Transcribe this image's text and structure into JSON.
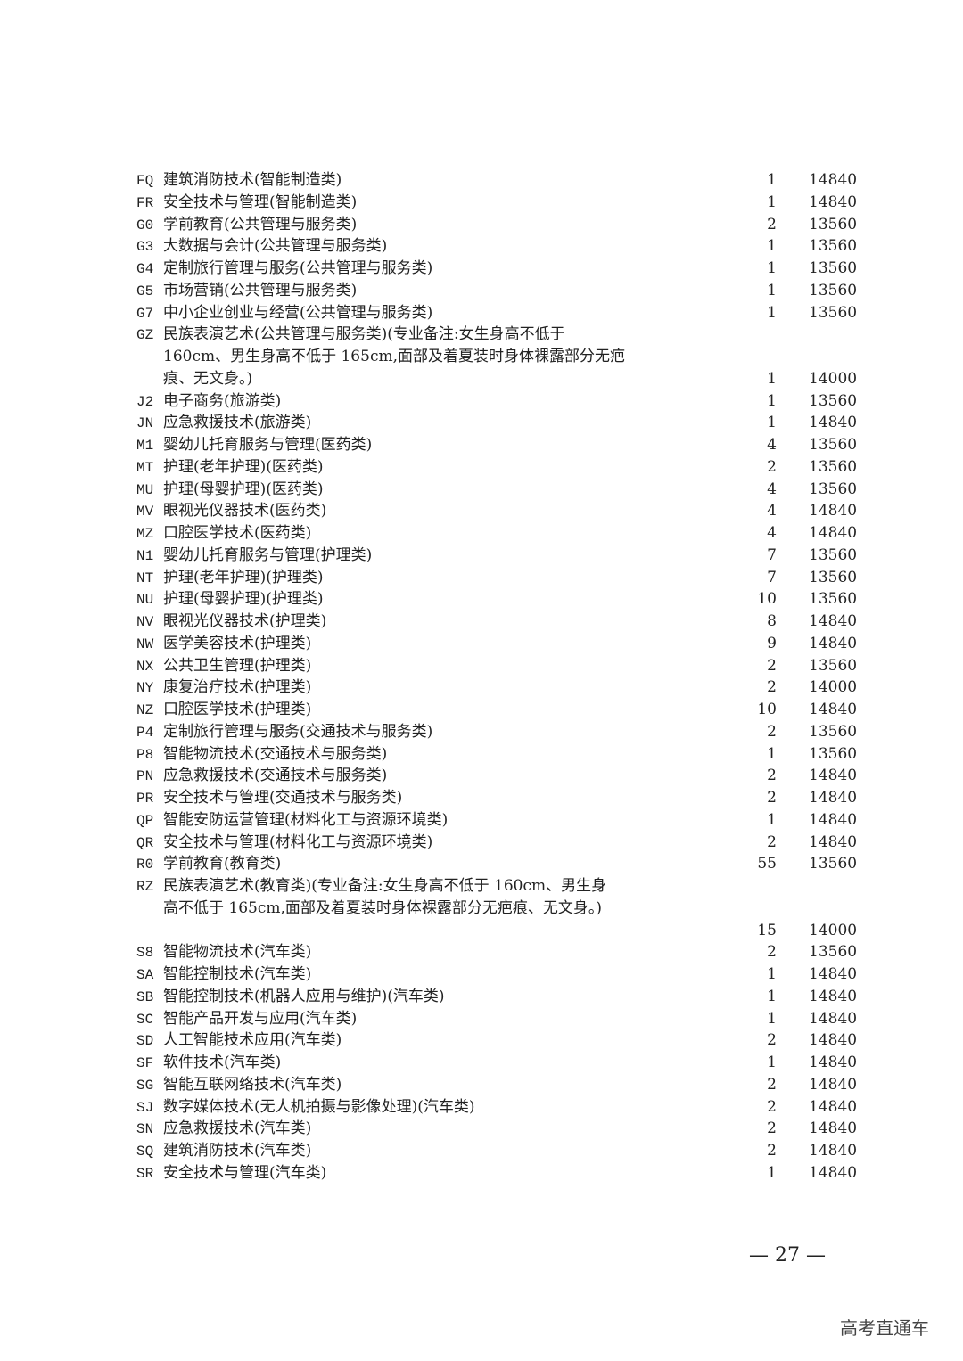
{
  "rows": [
    {
      "code": "FQ",
      "lines": [
        "建筑消防技术(智能制造类)"
      ],
      "count": "1",
      "fee": "14840"
    },
    {
      "code": "FR",
      "lines": [
        "安全技术与管理(智能制造类)"
      ],
      "count": "1",
      "fee": "14840"
    },
    {
      "code": "G0",
      "lines": [
        "学前教育(公共管理与服务类)"
      ],
      "count": "2",
      "fee": "13560"
    },
    {
      "code": "G3",
      "lines": [
        "大数据与会计(公共管理与服务类)"
      ],
      "count": "1",
      "fee": "13560"
    },
    {
      "code": "G4",
      "lines": [
        "定制旅行管理与服务(公共管理与服务类)"
      ],
      "count": "1",
      "fee": "13560"
    },
    {
      "code": "G5",
      "lines": [
        "市场营销(公共管理与服务类)"
      ],
      "count": "1",
      "fee": "13560"
    },
    {
      "code": "G7",
      "lines": [
        "中小企业创业与经营(公共管理与服务类)"
      ],
      "count": "1",
      "fee": "13560"
    },
    {
      "code": "GZ",
      "lines": [
        "民族表演艺术(公共管理与服务类)(专业备注:女生身高不低于",
        "160cm、男生身高不低于 165cm,面部及着夏装时身体裸露部分无疤",
        "痕、无文身。)"
      ],
      "count": "1",
      "fee": "14000"
    },
    {
      "code": "J2",
      "lines": [
        "电子商务(旅游类)"
      ],
      "count": "1",
      "fee": "13560"
    },
    {
      "code": "JN",
      "lines": [
        "应急救援技术(旅游类)"
      ],
      "count": "1",
      "fee": "14840"
    },
    {
      "code": "M1",
      "lines": [
        "婴幼儿托育服务与管理(医药类)"
      ],
      "count": "4",
      "fee": "13560"
    },
    {
      "code": "MT",
      "lines": [
        "护理(老年护理)(医药类)"
      ],
      "count": "2",
      "fee": "13560"
    },
    {
      "code": "MU",
      "lines": [
        "护理(母婴护理)(医药类)"
      ],
      "count": "4",
      "fee": "13560"
    },
    {
      "code": "MV",
      "lines": [
        "眼视光仪器技术(医药类)"
      ],
      "count": "4",
      "fee": "14840"
    },
    {
      "code": "MZ",
      "lines": [
        "口腔医学技术(医药类)"
      ],
      "count": "4",
      "fee": "14840"
    },
    {
      "code": "N1",
      "lines": [
        "婴幼儿托育服务与管理(护理类)"
      ],
      "count": "7",
      "fee": "13560"
    },
    {
      "code": "NT",
      "lines": [
        "护理(老年护理)(护理类)"
      ],
      "count": "7",
      "fee": "13560"
    },
    {
      "code": "NU",
      "lines": [
        "护理(母婴护理)(护理类)"
      ],
      "count": "10",
      "fee": "13560"
    },
    {
      "code": "NV",
      "lines": [
        "眼视光仪器技术(护理类)"
      ],
      "count": "8",
      "fee": "14840"
    },
    {
      "code": "NW",
      "lines": [
        "医学美容技术(护理类)"
      ],
      "count": "9",
      "fee": "14840"
    },
    {
      "code": "NX",
      "lines": [
        "公共卫生管理(护理类)"
      ],
      "count": "2",
      "fee": "13560"
    },
    {
      "code": "NY",
      "lines": [
        "康复治疗技术(护理类)"
      ],
      "count": "2",
      "fee": "14000"
    },
    {
      "code": "NZ",
      "lines": [
        "口腔医学技术(护理类)"
      ],
      "count": "10",
      "fee": "14840"
    },
    {
      "code": "P4",
      "lines": [
        "定制旅行管理与服务(交通技术与服务类)"
      ],
      "count": "2",
      "fee": "13560"
    },
    {
      "code": "P8",
      "lines": [
        "智能物流技术(交通技术与服务类)"
      ],
      "count": "1",
      "fee": "13560"
    },
    {
      "code": "PN",
      "lines": [
        "应急救援技术(交通技术与服务类)"
      ],
      "count": "2",
      "fee": "14840"
    },
    {
      "code": "PR",
      "lines": [
        "安全技术与管理(交通技术与服务类)"
      ],
      "count": "2",
      "fee": "14840"
    },
    {
      "code": "QP",
      "lines": [
        "智能安防运营管理(材料化工与资源环境类)"
      ],
      "count": "1",
      "fee": "14840"
    },
    {
      "code": "QR",
      "lines": [
        "安全技术与管理(材料化工与资源环境类)"
      ],
      "count": "2",
      "fee": "14840"
    },
    {
      "code": "R0",
      "lines": [
        "学前教育(教育类)"
      ],
      "count": "55",
      "fee": "13560"
    },
    {
      "code": "RZ",
      "lines": [
        "民族表演艺术(教育类)(专业备注:女生身高不低于 160cm、男生身",
        "高不低于 165cm,面部及着夏装时身体裸露部分无疤痕、无文身。)",
        ""
      ],
      "count": "15",
      "fee": "14000"
    },
    {
      "code": "S8",
      "lines": [
        "智能物流技术(汽车类)"
      ],
      "count": "2",
      "fee": "13560"
    },
    {
      "code": "SA",
      "lines": [
        "智能控制技术(汽车类)"
      ],
      "count": "1",
      "fee": "14840"
    },
    {
      "code": "SB",
      "lines": [
        "智能控制技术(机器人应用与维护)(汽车类)"
      ],
      "count": "1",
      "fee": "14840"
    },
    {
      "code": "SC",
      "lines": [
        "智能产品开发与应用(汽车类)"
      ],
      "count": "1",
      "fee": "14840"
    },
    {
      "code": "SD",
      "lines": [
        "人工智能技术应用(汽车类)"
      ],
      "count": "2",
      "fee": "14840"
    },
    {
      "code": "SF",
      "lines": [
        "软件技术(汽车类)"
      ],
      "count": "1",
      "fee": "14840"
    },
    {
      "code": "SG",
      "lines": [
        "智能互联网络技术(汽车类)"
      ],
      "count": "2",
      "fee": "14840"
    },
    {
      "code": "SJ",
      "lines": [
        "数字媒体技术(无人机拍摄与影像处理)(汽车类)"
      ],
      "count": "2",
      "fee": "14840"
    },
    {
      "code": "SN",
      "lines": [
        "应急救援技术(汽车类)"
      ],
      "count": "2",
      "fee": "14840"
    },
    {
      "code": "SQ",
      "lines": [
        "建筑消防技术(汽车类)"
      ],
      "count": "2",
      "fee": "14840"
    },
    {
      "code": "SR",
      "lines": [
        "安全技术与管理(汽车类)"
      ],
      "count": "1",
      "fee": "14840"
    }
  ],
  "page_number": "— 27 —",
  "watermark": "高考直通车"
}
